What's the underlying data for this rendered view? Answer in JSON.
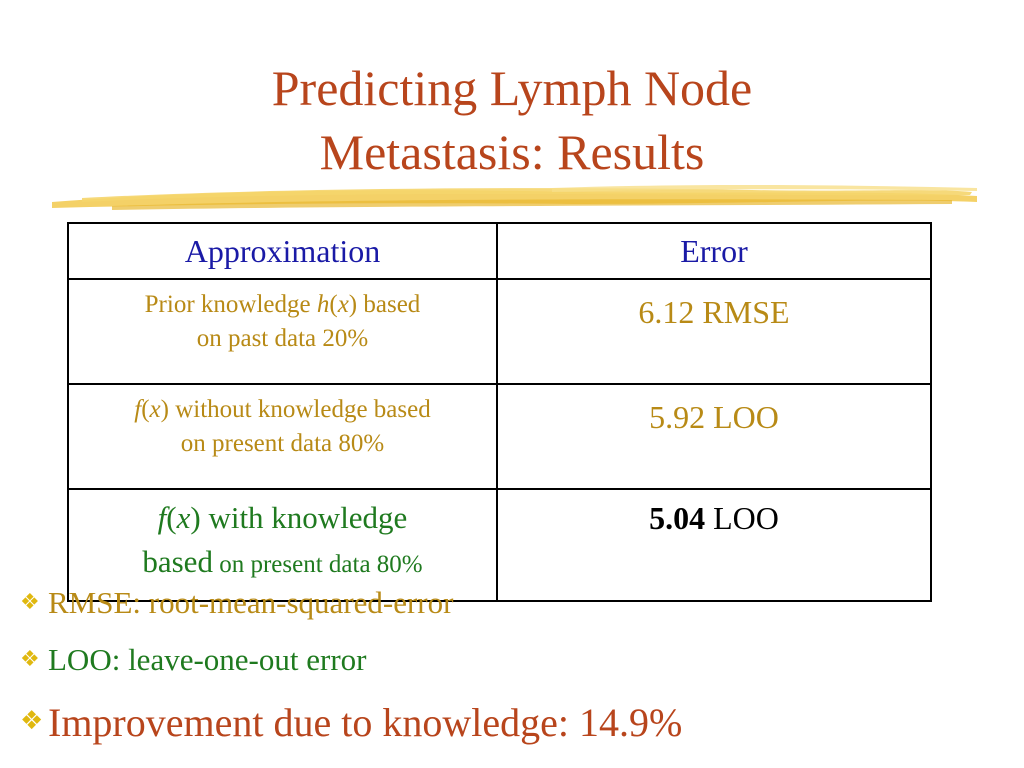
{
  "slide": {
    "title_line1": "Predicting Lymph Node",
    "title_line2": "Metastasis: Results"
  },
  "table": {
    "headers": [
      "Approximation",
      "Error"
    ],
    "rows": [
      {
        "approx_a": "Prior  knowledge ",
        "approx_h": "h",
        "approx_paren_open": "(",
        "approx_x": "x",
        "approx_paren_close": ")",
        "approx_b": " based",
        "approx_c": "on past data 20%",
        "error": "6.12  RMSE"
      },
      {
        "approx_f": "f",
        "approx_paren_open": "(",
        "approx_x": "x",
        "approx_paren_close": ")",
        "approx_a": " without knowledge based",
        "approx_b": "on present data 80%",
        "error": "5.92  LOO"
      },
      {
        "approx_f": "f",
        "approx_paren_open": "(",
        "approx_x": "x",
        "approx_paren_close": ")",
        "approx_a": " with knowledge",
        "approx_b": "based",
        "approx_c": " on present data 80%",
        "error_value": "5.04",
        "error_unit": "  LOO"
      }
    ]
  },
  "bullets": [
    {
      "icon": "diamond-bullet-icon",
      "text": "RMSE: root-mean-squared-error"
    },
    {
      "icon": "diamond-bullet-icon",
      "text": "LOO: leave-one-out error"
    },
    {
      "icon": "diamond-bullet-icon",
      "text": "Improvement due to knowledge: 14.9%"
    }
  ],
  "colors": {
    "title": "#b8451c",
    "header": "#1a1aa6",
    "gold_text": "#b88a16",
    "green_text": "#1f7a1f",
    "bullet_diamond": "#e0b80f",
    "underline_brush": "#f2c94c"
  }
}
